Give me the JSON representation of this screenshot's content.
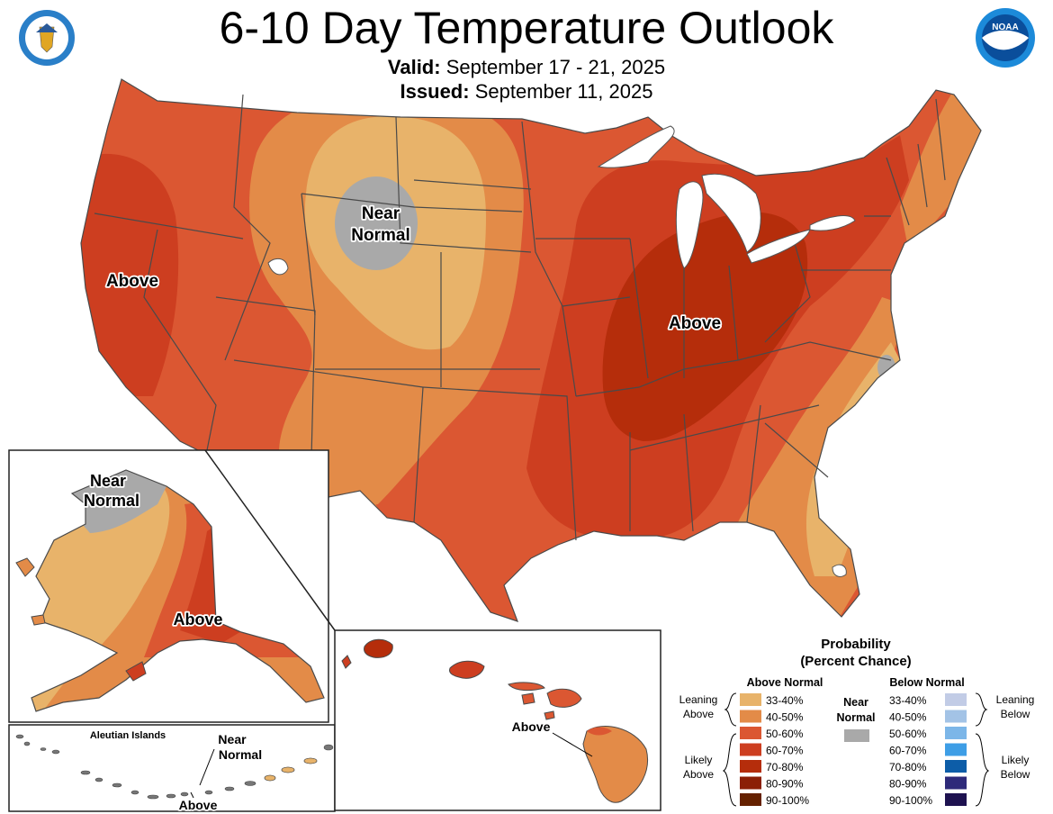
{
  "header": {
    "title": "6-10 Day Temperature Outlook",
    "valid_label": "Valid:",
    "valid_value": "September 17 - 21, 2025",
    "issued_label": "Issued:",
    "issued_value": "September 11, 2025",
    "left_logo": "department-of-commerce-seal",
    "right_logo": "noaa-logo"
  },
  "map_labels": {
    "conus_near_normal_1": "Near",
    "conus_near_normal_2": "Normal",
    "conus_above_west": "Above",
    "conus_above_east": "Above",
    "alaska_near_normal_1": "Near",
    "alaska_near_normal_2": "Normal",
    "alaska_above": "Above",
    "aleutian_title": "Aleutian Islands",
    "aleutian_near_normal_1": "Near",
    "aleutian_near_normal_2": "Normal",
    "aleutian_above": "Above",
    "hawaii_above": "Above"
  },
  "legend": {
    "title_1": "Probability",
    "title_2": "(Percent Chance)",
    "above_header": "Above Normal",
    "near_header_1": "Near",
    "near_header_2": "Normal",
    "below_header": "Below Normal",
    "leaning_above_1": "Leaning",
    "leaning_above_2": "Above",
    "likely_above_1": "Likely",
    "likely_above_2": "Above",
    "leaning_below_1": "Leaning",
    "leaning_below_2": "Below",
    "likely_below_1": "Likely",
    "likely_below_2": "Below",
    "above": [
      {
        "range": "33-40%",
        "color": "#E8B36A"
      },
      {
        "range": "40-50%",
        "color": "#E38B48"
      },
      {
        "range": "50-60%",
        "color": "#DB5732"
      },
      {
        "range": "60-70%",
        "color": "#CD3E20"
      },
      {
        "range": "70-80%",
        "color": "#B52D0B"
      },
      {
        "range": "80-90%",
        "color": "#8B1F06"
      },
      {
        "range": "90-100%",
        "color": "#652100"
      }
    ],
    "near_color": "#A9A9A9",
    "below": [
      {
        "range": "33-40%",
        "color": "#C2CCE6"
      },
      {
        "range": "40-50%",
        "color": "#A3C3E6"
      },
      {
        "range": "50-60%",
        "color": "#7CB6E8"
      },
      {
        "range": "60-70%",
        "color": "#3E9EE6"
      },
      {
        "range": "70-80%",
        "color": "#0D5DA8"
      },
      {
        "range": "80-90%",
        "color": "#2E2A7A"
      },
      {
        "range": "90-100%",
        "color": "#1E1250"
      }
    ]
  },
  "colors": {
    "above_33_40": "#E8B36A",
    "above_40_50": "#E38B48",
    "above_50_60": "#DB5732",
    "above_60_70": "#CD3E20",
    "above_70_80": "#B52D0B",
    "near": "#A9A9A9",
    "water": "#ffffff"
  }
}
